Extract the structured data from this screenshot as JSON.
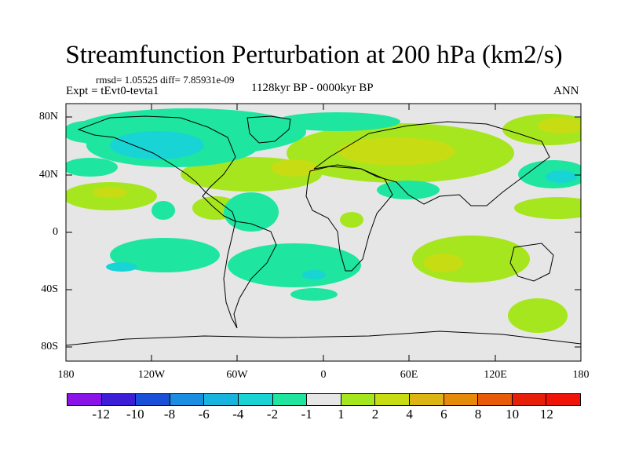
{
  "title": "Streamfunction Perturbation at 200 hPa (km2/s)",
  "rmsd_line": "rmsd= 1.05525 diff= 7.85931e-09",
  "experiment": "Expt = tEvt0-tevta1",
  "period": "1128kyr BP - 0000kyr BP",
  "season": "ANN",
  "lat_labels": [
    "80N",
    "40N",
    "0",
    "40S",
    "80S"
  ],
  "lon_labels": [
    "180",
    "120W",
    "60W",
    "0",
    "60E",
    "120E",
    "180"
  ],
  "colorbar": {
    "labels": [
      "-12",
      "-10",
      "-8",
      "-6",
      "-4",
      "-2",
      "-1",
      "1",
      "2",
      "4",
      "6",
      "8",
      "10",
      "12"
    ],
    "colors": [
      "#8a14e8",
      "#3c1ed8",
      "#1a4fd8",
      "#1a8ee0",
      "#18b4e0",
      "#18d4d4",
      "#1ee6a0",
      "#e6e6e6",
      "#a6e61e",
      "#c8dc14",
      "#dcb414",
      "#e68a0a",
      "#e65a0a",
      "#e61e0a",
      "#f01408"
    ]
  },
  "map_colors": {
    "ocean_bg": "#e6e6e6",
    "pos1": "#a6e61e",
    "pos2": "#c8dc14",
    "pos4": "#dcb414",
    "neg1": "#1ee6a0",
    "neg2": "#18d4d4",
    "neg4": "#18b4e0"
  }
}
